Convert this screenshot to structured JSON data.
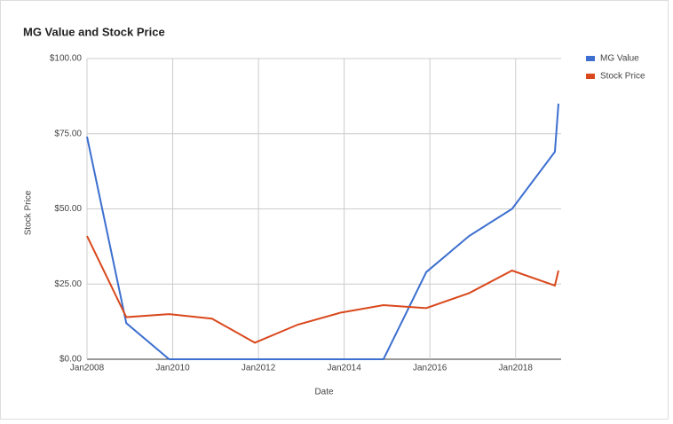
{
  "chart_data": {
    "type": "line",
    "title": "MG Value and Stock Price",
    "x_label": "Date",
    "y_label": "Stock Price",
    "x": [
      "2008-01",
      "2008-12",
      "2009-12",
      "2010-12",
      "2011-12",
      "2012-12",
      "2013-12",
      "2014-12",
      "2015-12",
      "2016-12",
      "2017-12",
      "2018-12",
      "2019-01"
    ],
    "xlim": [
      "2008-01",
      "2019-01"
    ],
    "xticks": [
      {
        "value": "2008-01",
        "label": "Jan2008"
      },
      {
        "value": "2010-01",
        "label": "Jan2010"
      },
      {
        "value": "2012-01",
        "label": "Jan2012"
      },
      {
        "value": "2014-01",
        "label": "Jan2014"
      },
      {
        "value": "2016-01",
        "label": "Jan2016"
      },
      {
        "value": "2018-01",
        "label": "Jan2018"
      }
    ],
    "ylim": [
      0,
      100
    ],
    "yticks": [
      {
        "value": 0,
        "label": "$0.00"
      },
      {
        "value": 25,
        "label": "$25.00"
      },
      {
        "value": 50,
        "label": "$50.00"
      },
      {
        "value": 75,
        "label": "$75.00"
      },
      {
        "value": 100,
        "label": "$100.00"
      }
    ],
    "grid": true,
    "legend": "right",
    "series": [
      {
        "name": "MG Value",
        "color": "#3c6fcf",
        "values": [
          74,
          12,
          0,
          0,
          0,
          0,
          0,
          0,
          29,
          41,
          50,
          69,
          85
        ]
      },
      {
        "name": "Stock Price",
        "color": "#d9481c",
        "values": [
          41,
          14,
          15,
          13.5,
          5.5,
          11.5,
          15.5,
          18,
          17,
          22,
          29.5,
          24.5,
          29.5
        ]
      }
    ]
  }
}
